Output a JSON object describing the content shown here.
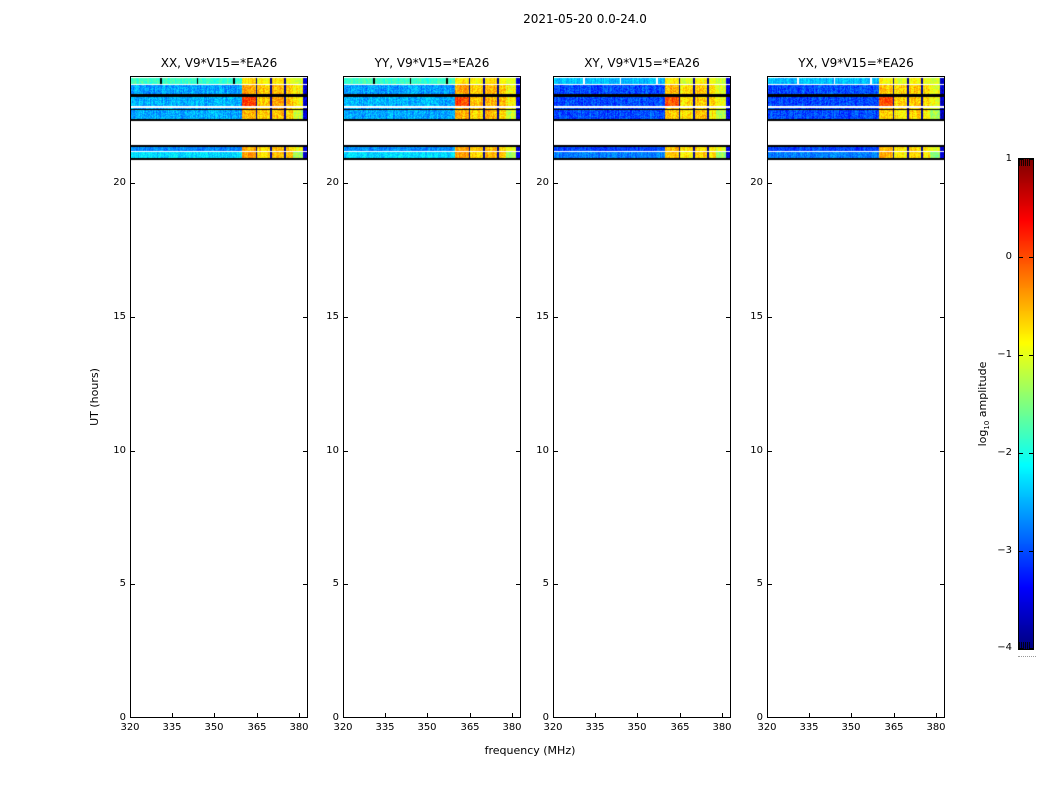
{
  "figure": {
    "title": "2021-05-20 0.0-24.0",
    "xlabel": "frequency (MHz)",
    "ylabel": "UT (hours)"
  },
  "chart_data": {
    "type": "heatmap",
    "title": "2021-05-20 0.0-24.0",
    "xlabel": "frequency (MHz)",
    "ylabel": "UT (hours)",
    "colormap": "jet",
    "x_range_mhz": [
      320,
      383.3
    ],
    "x_ticks": [
      320,
      335,
      350,
      365,
      380
    ],
    "y_range_hours": [
      0,
      24
    ],
    "y_ticks": [
      0,
      5,
      10,
      15,
      20
    ],
    "panels": [
      {
        "label": "XX, V9*V15=*EA26",
        "pol": "parallel"
      },
      {
        "label": "YY, V9*V15=*EA26",
        "pol": "parallel"
      },
      {
        "label": "XY, V9*V15=*EA26",
        "pol": "cross"
      },
      {
        "label": "YX, V9*V15=*EA26",
        "pol": "cross"
      }
    ],
    "colorbar": {
      "label_parts": {
        "prefix": "log",
        "sub": "10",
        "suffix": " amplitude"
      },
      "range": [
        -4,
        1
      ],
      "ticks": [
        1,
        0,
        -1,
        -2,
        -3,
        -4
      ],
      "tick_labels": [
        "1",
        "0",
        "−1",
        "−2",
        "−3",
        "−4"
      ]
    },
    "right_band_edges_mhz": [
      360,
      365,
      370,
      375,
      378,
      381.5
    ],
    "right_separators_mhz": [
      365,
      370,
      375
    ],
    "edge_band": {
      "f0": 381.5,
      "f1": 383.3,
      "amp": -3.6
    },
    "separator_amp": -3.9,
    "subband_marks_mhz": [
      331,
      344,
      357
    ],
    "cross_right_offset": -0.12,
    "rows": [
      {
        "ut": [
          23.93,
          23.7
        ],
        "kind": "data",
        "amp_left": {
          "parallel": -1.85,
          "cross": -2.45
        },
        "amp_right": [
          -0.75,
          -0.9,
          -0.75,
          -0.85,
          -1.05
        ],
        "noise": 0.35,
        "marks": true
      },
      {
        "ut": [
          23.7,
          23.66
        ],
        "kind": "white"
      },
      {
        "ut": [
          23.66,
          23.33
        ],
        "kind": "data",
        "amp_left": {
          "parallel": -2.6,
          "cross": -3.0
        },
        "amp_right": [
          -0.45,
          -0.6,
          -0.5,
          -0.6,
          -0.9
        ],
        "noise": 0.55
      },
      {
        "ut": [
          23.33,
          23.21
        ],
        "kind": "black"
      },
      {
        "ut": [
          23.21,
          22.87
        ],
        "kind": "data",
        "amp_left": {
          "parallel": -2.5,
          "cross": -3.0
        },
        "amp_right": [
          0.05,
          -0.6,
          -0.5,
          -0.55,
          -0.85
        ],
        "noise": 0.55
      },
      {
        "ut": [
          22.87,
          22.8
        ],
        "kind": "white"
      },
      {
        "ut": [
          22.8,
          22.76
        ],
        "kind": "data",
        "amp_left": {
          "parallel": -2.6,
          "cross": -3.0
        },
        "amp_right": [
          -0.45,
          -0.6,
          -0.5,
          -0.6,
          -0.9
        ],
        "noise": 0.5
      },
      {
        "ut": [
          22.76,
          22.72
        ],
        "kind": "black"
      },
      {
        "ut": [
          22.72,
          22.39
        ],
        "kind": "data",
        "amp_left": {
          "parallel": -2.55,
          "cross": -3.0
        },
        "amp_right": [
          -0.5,
          -0.65,
          -0.5,
          -0.7,
          -1.15
        ],
        "noise": 0.55
      },
      {
        "ut": [
          22.39,
          22.33
        ],
        "kind": "black"
      },
      {
        "ut": [
          21.43,
          21.33
        ],
        "kind": "black"
      },
      {
        "ut": [
          21.33,
          21.2
        ],
        "kind": "data",
        "amp_left": {
          "parallel": -2.7,
          "cross": -3.05
        },
        "amp_right": [
          -0.45,
          -0.65,
          -0.55,
          -0.65,
          -0.9
        ],
        "noise": 0.4
      },
      {
        "ut": [
          21.2,
          21.16
        ],
        "kind": "white"
      },
      {
        "ut": [
          21.16,
          20.93
        ],
        "kind": "data",
        "amp_left": {
          "parallel": -2.3,
          "cross": -2.75
        },
        "amp_right": [
          -0.4,
          -0.7,
          -0.55,
          -0.6,
          -1.3
        ],
        "noise": 0.4
      },
      {
        "ut": [
          20.93,
          20.86
        ],
        "kind": "black"
      }
    ]
  }
}
